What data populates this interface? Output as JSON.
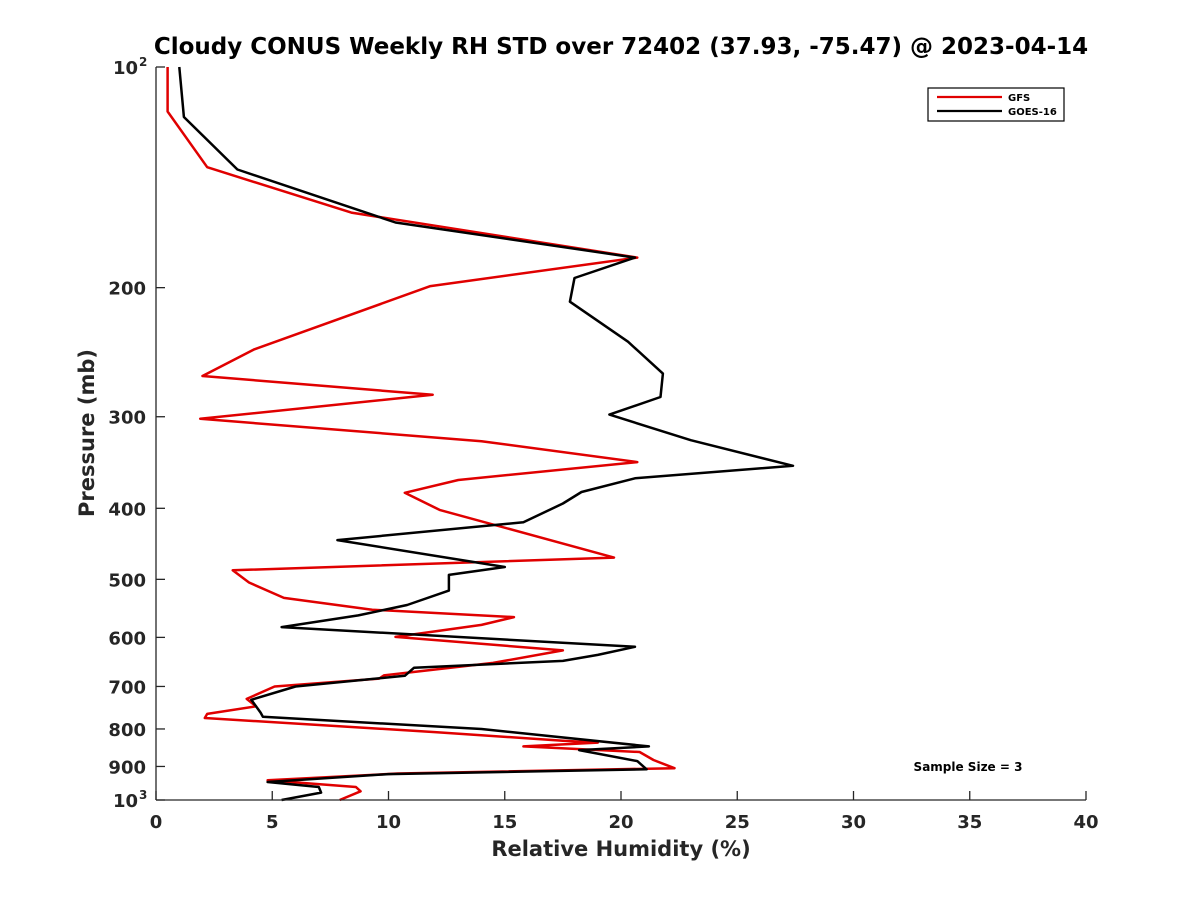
{
  "chart_data": {
    "type": "line",
    "title": "Cloudy CONUS Weekly RH STD over 72402 (37.93, -75.47) @ 2023-04-14",
    "xlabel": "Relative Humidity (%)",
    "ylabel": "Pressure (mb)",
    "xlim": [
      0,
      40
    ],
    "ylim": [
      100,
      1000
    ],
    "y_scale": "log",
    "y_reversed": true,
    "grid": false,
    "legend_position": "top-right",
    "x_ticks": [
      "0",
      "5",
      "10",
      "15",
      "20",
      "25",
      "30",
      "35",
      "40"
    ],
    "y_ticks": [
      {
        "base": "10",
        "exp": "2"
      },
      {
        "base": "200",
        "exp": ""
      },
      {
        "base": "300",
        "exp": ""
      },
      {
        "base": "400",
        "exp": ""
      },
      {
        "base": "500",
        "exp": ""
      },
      {
        "base": "600",
        "exp": ""
      },
      {
        "base": "700",
        "exp": ""
      },
      {
        "base": "800",
        "exp": ""
      },
      {
        "base": "900",
        "exp": ""
      },
      {
        "base": "10",
        "exp": "3"
      }
    ],
    "annotation": "Sample Size = 3",
    "series": [
      {
        "name": "GFS",
        "color": "#e00000",
        "points": [
          [
            0.5,
            100
          ],
          [
            0.5,
            115
          ],
          [
            2.2,
            137
          ],
          [
            8.4,
            158
          ],
          [
            20.7,
            182
          ],
          [
            11.8,
            199
          ],
          [
            4.2,
            243
          ],
          [
            2.0,
            264
          ],
          [
            11.9,
            280
          ],
          [
            1.9,
            302
          ],
          [
            14.0,
            324
          ],
          [
            20.7,
            346
          ],
          [
            13.0,
            366
          ],
          [
            10.7,
            381
          ],
          [
            12.2,
            402
          ],
          [
            19.7,
            467
          ],
          [
            3.3,
            486
          ],
          [
            4.0,
            505
          ],
          [
            5.5,
            530
          ],
          [
            9.3,
            550
          ],
          [
            15.4,
            563
          ],
          [
            14.0,
            577
          ],
          [
            10.3,
            599
          ],
          [
            17.5,
            625
          ],
          [
            14.5,
            650
          ],
          [
            9.8,
            676
          ],
          [
            9.6,
            683
          ],
          [
            5.1,
            700
          ],
          [
            3.9,
            728
          ],
          [
            4.3,
            745
          ],
          [
            2.2,
            763
          ],
          [
            2.1,
            773
          ],
          [
            12.0,
            808
          ],
          [
            17.5,
            830
          ],
          [
            19.0,
            835
          ],
          [
            15.8,
            845
          ],
          [
            20.8,
            860
          ],
          [
            21.4,
            882
          ],
          [
            22.3,
            905
          ],
          [
            10.4,
            920
          ],
          [
            4.8,
            940
          ],
          [
            8.6,
            960
          ],
          [
            8.8,
            973
          ],
          [
            7.9,
            1000
          ]
        ]
      },
      {
        "name": "GOES-16",
        "color": "#000000",
        "points": [
          [
            1.0,
            100
          ],
          [
            1.2,
            117
          ],
          [
            3.5,
            138
          ],
          [
            10.3,
            163
          ],
          [
            20.6,
            182
          ],
          [
            18.0,
            194
          ],
          [
            17.8,
            209
          ],
          [
            20.3,
            237
          ],
          [
            21.8,
            262
          ],
          [
            21.7,
            282
          ],
          [
            19.5,
            298
          ],
          [
            23.0,
            323
          ],
          [
            27.4,
            350
          ],
          [
            20.6,
            364
          ],
          [
            18.3,
            380
          ],
          [
            17.5,
            394
          ],
          [
            15.8,
            418
          ],
          [
            7.8,
            442
          ],
          [
            15.0,
            481
          ],
          [
            12.6,
            493
          ],
          [
            12.6,
            518
          ],
          [
            10.8,
            542
          ],
          [
            8.7,
            560
          ],
          [
            5.4,
            581
          ],
          [
            20.6,
            618
          ],
          [
            19.0,
            634
          ],
          [
            17.5,
            646
          ],
          [
            11.1,
            660
          ],
          [
            10.7,
            677
          ],
          [
            6.0,
            700
          ],
          [
            4.1,
            730
          ],
          [
            4.5,
            760
          ],
          [
            4.6,
            770
          ],
          [
            14.0,
            800
          ],
          [
            21.2,
            845
          ],
          [
            18.2,
            855
          ],
          [
            20.7,
            885
          ],
          [
            21.1,
            908
          ],
          [
            10.0,
            922
          ],
          [
            4.8,
            945
          ],
          [
            7.0,
            960
          ],
          [
            7.1,
            977
          ],
          [
            5.4,
            1000
          ]
        ]
      }
    ]
  }
}
